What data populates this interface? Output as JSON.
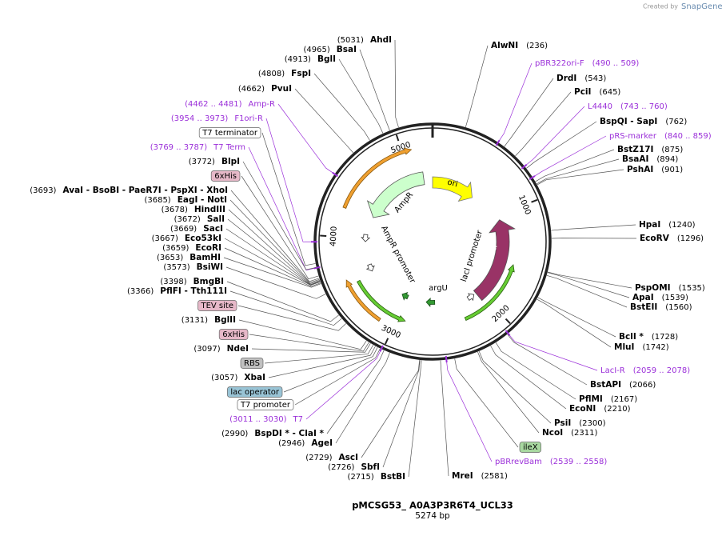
{
  "credit": {
    "prefix": "Created by",
    "brand": "SnapGene"
  },
  "title": "pMCSG53_ A0A3P3R6T4_UCL33",
  "length": "5274 bp",
  "ruler": [
    1000,
    2000,
    3000,
    4000,
    5000
  ],
  "map_features": [
    {
      "name": "ori",
      "color": "#ffff00"
    },
    {
      "name": "AmpR",
      "color": "#ccffcc"
    },
    {
      "name": "lacI",
      "color": "#993366"
    },
    {
      "name": "AmpR promoter"
    },
    {
      "name": "lacI promoter"
    },
    {
      "name": "argU",
      "color": "#339933"
    }
  ],
  "left_labels": [
    {
      "site": "AhdI",
      "pos": "(5031)"
    },
    {
      "site": "BsaI",
      "pos": "(4965)"
    },
    {
      "site": "BglI",
      "pos": "(4913)"
    },
    {
      "site": "FspI",
      "pos": "(4808)"
    },
    {
      "site": "PvuI",
      "pos": "(4662)"
    },
    {
      "primer": "Amp-R",
      "range": "(4462 .. 4481)"
    },
    {
      "primer": "F1ori-R",
      "range": "(3954 .. 3973)"
    },
    {
      "feature": "T7 terminator",
      "color": "#ffffff"
    },
    {
      "primer": "T7 Term",
      "range": "(3769 .. 3787)"
    },
    {
      "site": "BlpI",
      "pos": "(3772)"
    },
    {
      "feature": "6xHis",
      "color": "#e6b8c8"
    },
    {
      "site": "AvaI - BsoBI - PaeR7I - PspXI - XhoI",
      "pos": "(3693)"
    },
    {
      "site": "EagI - NotI",
      "pos": "(3685)"
    },
    {
      "site": "HindIII",
      "pos": "(3678)"
    },
    {
      "site": "SalI",
      "pos": "(3672)"
    },
    {
      "site": "SacI",
      "pos": "(3669)"
    },
    {
      "site": "Eco53kI",
      "pos": "(3667)"
    },
    {
      "site": "EcoRI",
      "pos": "(3659)"
    },
    {
      "site": "BamHI",
      "pos": "(3653)"
    },
    {
      "site": "BsiWI",
      "pos": "(3573)"
    },
    {
      "site": "BmgBI",
      "pos": "(3398)"
    },
    {
      "site": "PflFI - Tth111I",
      "pos": "(3366)"
    },
    {
      "feature": "TEV site",
      "color": "#e6b8c8"
    },
    {
      "site": "BglII",
      "pos": "(3131)"
    },
    {
      "feature": "6xHis",
      "color": "#e6b8c8"
    },
    {
      "site": "NdeI",
      "pos": "(3097)"
    },
    {
      "feature": "RBS",
      "color": "#c0c0c0"
    },
    {
      "site": "XbaI",
      "pos": "(3057)"
    },
    {
      "feature": "lac operator",
      "color": "#99c4d6"
    },
    {
      "feature": "T7 promoter",
      "color": "#ffffff"
    },
    {
      "primer": "T7",
      "range": "(3011 .. 3030)"
    },
    {
      "site": "BspDI * - ClaI *",
      "pos": "(2990)"
    },
    {
      "site": "AgeI",
      "pos": "(2946)"
    },
    {
      "site": "AscI",
      "pos": "(2729)"
    },
    {
      "site": "SbfI",
      "pos": "(2726)"
    },
    {
      "site": "BstBI",
      "pos": "(2715)"
    }
  ],
  "right_labels": [
    {
      "site": "AlwNI",
      "pos": "(236)"
    },
    {
      "primer": "pBR322ori-F",
      "range": "(490 .. 509)"
    },
    {
      "site": "DrdI",
      "pos": "(543)"
    },
    {
      "site": "PciI",
      "pos": "(645)"
    },
    {
      "primer": "L4440",
      "range": "(743 .. 760)"
    },
    {
      "site": "BspQI - SapI",
      "pos": "(762)"
    },
    {
      "primer": "pRS-marker",
      "range": "(840 .. 859)"
    },
    {
      "site": "BstZ17I",
      "pos": "(875)"
    },
    {
      "site": "BsaAI",
      "pos": "(894)"
    },
    {
      "site": "PshAI",
      "pos": "(901)"
    },
    {
      "site": "HpaI",
      "pos": "(1240)"
    },
    {
      "site": "EcoRV",
      "pos": "(1296)"
    },
    {
      "site": "PspOMI",
      "pos": "(1535)"
    },
    {
      "site": "ApaI",
      "pos": "(1539)"
    },
    {
      "site": "BstEII",
      "pos": "(1560)"
    },
    {
      "site": "BclI *",
      "pos": "(1728)"
    },
    {
      "site": "MluI",
      "pos": "(1742)"
    },
    {
      "primer": "LacI-R",
      "range": "(2059 .. 2078)"
    },
    {
      "site": "BstAPI",
      "pos": "(2066)"
    },
    {
      "site": "PflMI",
      "pos": "(2167)"
    },
    {
      "site": "EcoNI",
      "pos": "(2210)"
    },
    {
      "site": "PsiI",
      "pos": "(2300)"
    },
    {
      "site": "NcoI",
      "pos": "(2311)"
    },
    {
      "feature": "ileX",
      "color": "#a8d8a0"
    },
    {
      "primer": "pBRrevBam",
      "range": "(2539 .. 2558)"
    },
    {
      "site": "MreI",
      "pos": "(2581)"
    }
  ]
}
